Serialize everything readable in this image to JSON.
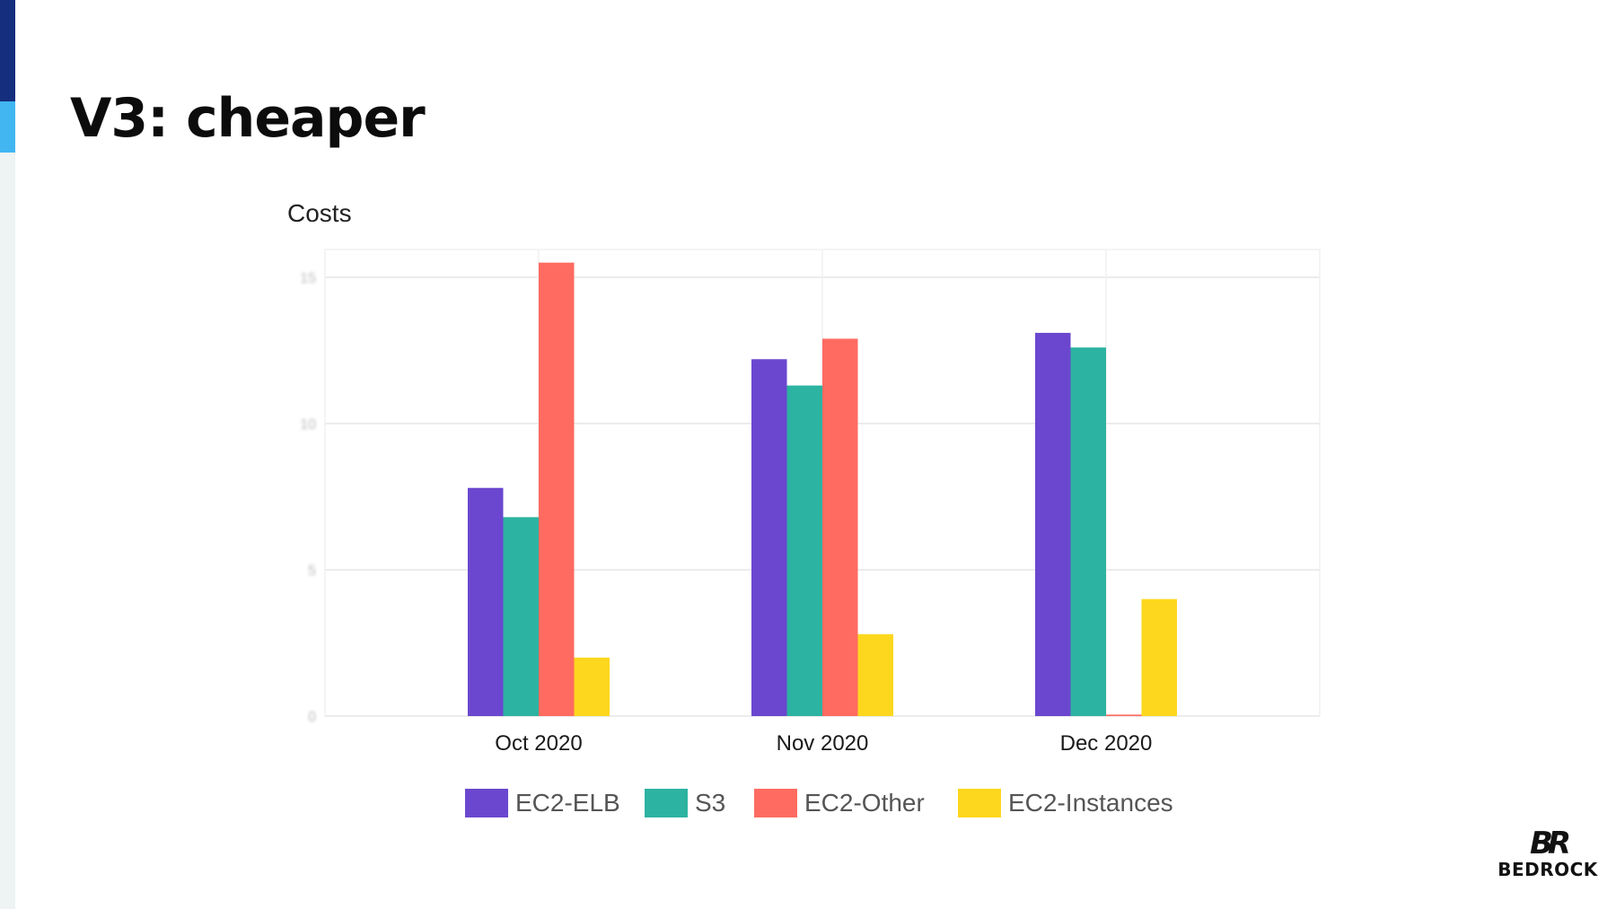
{
  "slide": {
    "title": "V3: cheaper"
  },
  "logo": {
    "mark": "BR",
    "name": "BEDROCK"
  },
  "colors": {
    "accent_dark": "#162e7e",
    "accent_light": "#42b6f1"
  },
  "chart_data": {
    "type": "bar",
    "title": "Costs",
    "xlabel": "",
    "ylabel": "",
    "categories": [
      "Oct 2020",
      "Nov 2020",
      "Dec 2020"
    ],
    "series": [
      {
        "name": "EC2-ELB",
        "color": "#6b47cf",
        "values": [
          7.8,
          12.2,
          13.1
        ]
      },
      {
        "name": "S3",
        "color": "#2db3a1",
        "values": [
          6.8,
          11.3,
          12.6
        ]
      },
      {
        "name": "EC2-Other",
        "color": "#ff6b61",
        "values": [
          15.5,
          12.9,
          0.05
        ]
      },
      {
        "name": "EC2-Instances",
        "color": "#fdd71d",
        "values": [
          2.0,
          2.8,
          4.0
        ]
      }
    ],
    "yticks": [
      "0",
      "5",
      "10",
      "15"
    ],
    "ylim": [
      0,
      16
    ],
    "grid": true,
    "legend": "bottom"
  }
}
